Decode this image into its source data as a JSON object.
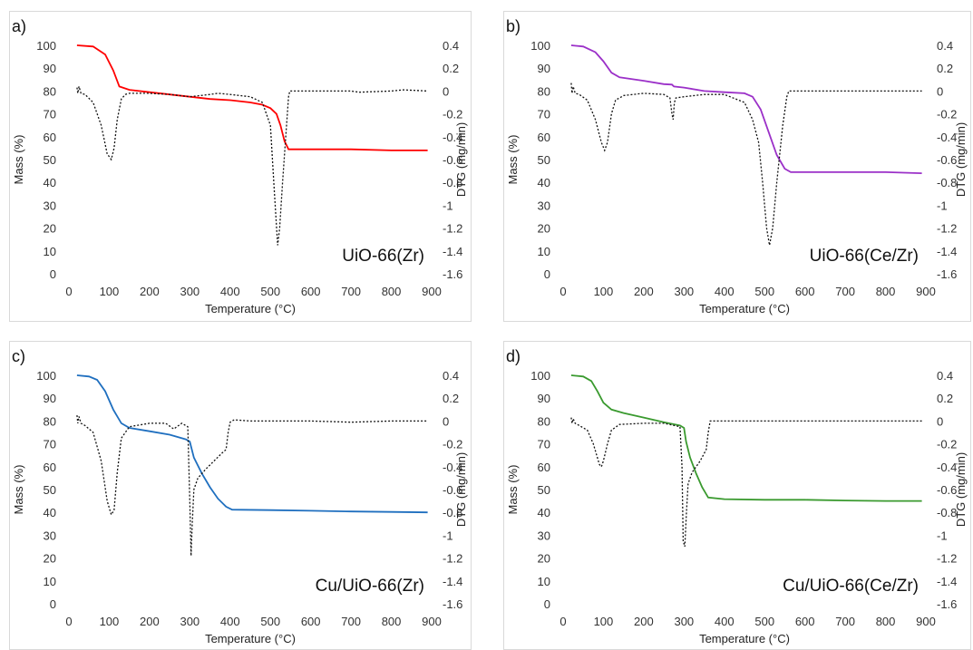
{
  "chart_data": [
    {
      "type": "line",
      "panel_label": "a)",
      "sample": "UiO-66(Zr)",
      "xlabel": "Temperature (°C)",
      "ylabel": "Mass (%)",
      "y2label": "DTG (mg/min)",
      "xlim": [
        0,
        900
      ],
      "ylim": [
        0,
        100
      ],
      "y2lim": [
        -1.6,
        0.4
      ],
      "xticks": [
        0,
        100,
        200,
        300,
        400,
        500,
        600,
        700,
        800,
        900
      ],
      "yticks": [
        0,
        10,
        20,
        30,
        40,
        50,
        60,
        70,
        80,
        90,
        100
      ],
      "y2ticks": [
        "0.4",
        "0.2",
        "0",
        "-0.2",
        "-0.4",
        "-0.6",
        "-0.8",
        "-1",
        "-1.2",
        "-1.4",
        "-1.6"
      ],
      "mass_color": "#ff0000",
      "series": [
        {
          "axis": "left",
          "style": "solid",
          "x": [
            20,
            60,
            90,
            110,
            125,
            150,
            200,
            250,
            300,
            350,
            400,
            450,
            480,
            500,
            515,
            525,
            535,
            545,
            600,
            700,
            800,
            890
          ],
          "y": [
            100,
            99.5,
            96,
            89,
            82,
            80.5,
            79.5,
            78.5,
            77.5,
            76.5,
            76,
            75,
            74,
            72.5,
            70,
            65,
            58,
            54.5,
            54.5,
            54.5,
            54,
            54
          ]
        },
        {
          "axis": "right",
          "style": "dotted",
          "x": [
            20,
            22,
            25,
            30,
            40,
            60,
            80,
            95,
            105,
            112,
            120,
            130,
            140,
            150,
            200,
            250,
            300,
            350,
            370,
            400,
            450,
            480,
            500,
            510,
            518,
            523,
            530,
            540,
            545,
            548,
            560,
            600,
            700,
            720,
            800,
            830,
            890
          ],
          "y": [
            0.03,
            -0.02,
            0.04,
            -0.02,
            -0.03,
            -0.1,
            -0.3,
            -0.55,
            -0.6,
            -0.5,
            -0.25,
            -0.07,
            -0.03,
            -0.02,
            -0.02,
            -0.03,
            -0.05,
            -0.03,
            -0.02,
            -0.03,
            -0.05,
            -0.1,
            -0.3,
            -0.9,
            -1.35,
            -1.2,
            -0.8,
            -0.3,
            -0.05,
            0,
            0,
            0,
            0,
            -0.01,
            0,
            0.01,
            0
          ]
        }
      ]
    },
    {
      "type": "line",
      "panel_label": "b)",
      "sample": "UiO-66(Ce/Zr)",
      "xlabel": "Temperature (°C)",
      "ylabel": "Mass (%)",
      "y2label": "DTG (mg/min)",
      "xlim": [
        0,
        900
      ],
      "ylim": [
        0,
        100
      ],
      "y2lim": [
        -1.6,
        0.4
      ],
      "xticks": [
        0,
        100,
        200,
        300,
        400,
        500,
        600,
        700,
        800,
        900
      ],
      "yticks": [
        0,
        10,
        20,
        30,
        40,
        50,
        60,
        70,
        80,
        90,
        100
      ],
      "y2ticks": [
        "0.4",
        "0.2",
        "0",
        "-0.2",
        "-0.4",
        "-0.6",
        "-0.8",
        "-1",
        "-1.2",
        "-1.4",
        "-1.6"
      ],
      "mass_color": "#9b30c8",
      "series": [
        {
          "axis": "left",
          "style": "solid",
          "x": [
            20,
            50,
            80,
            100,
            120,
            140,
            200,
            250,
            270,
            275,
            300,
            350,
            400,
            450,
            470,
            490,
            510,
            530,
            550,
            565,
            600,
            700,
            800,
            890
          ],
          "y": [
            100,
            99.5,
            97,
            93,
            88,
            86,
            84.5,
            83,
            82.8,
            82,
            81.5,
            80,
            79.5,
            79,
            77.5,
            72,
            62,
            52,
            46,
            44.5,
            44.5,
            44.5,
            44.5,
            44
          ]
        },
        {
          "axis": "right",
          "style": "dotted",
          "x": [
            20,
            22,
            25,
            30,
            40,
            60,
            80,
            95,
            103,
            110,
            120,
            130,
            150,
            200,
            250,
            265,
            270,
            273,
            276,
            280,
            300,
            350,
            400,
            450,
            470,
            485,
            495,
            505,
            512,
            520,
            530,
            545,
            555,
            560,
            600,
            700,
            800,
            890
          ],
          "y": [
            0.07,
            -0.02,
            0.04,
            -0.02,
            -0.03,
            -0.08,
            -0.25,
            -0.45,
            -0.52,
            -0.45,
            -0.2,
            -0.08,
            -0.04,
            -0.02,
            -0.03,
            -0.06,
            -0.2,
            -0.25,
            -0.1,
            -0.06,
            -0.05,
            -0.03,
            -0.03,
            -0.1,
            -0.25,
            -0.45,
            -0.8,
            -1.2,
            -1.35,
            -1.2,
            -0.8,
            -0.3,
            -0.05,
            0,
            0,
            0,
            0,
            0
          ]
        }
      ]
    },
    {
      "type": "line",
      "panel_label": "c)",
      "sample": "Cu/UiO-66(Zr)",
      "xlabel": "Temperature (°C)",
      "ylabel": "Mass (%)",
      "y2label": "DTG (mg/min)",
      "xlim": [
        0,
        900
      ],
      "ylim": [
        0,
        100
      ],
      "y2lim": [
        -1.6,
        0.4
      ],
      "xticks": [
        0,
        100,
        200,
        300,
        400,
        500,
        600,
        700,
        800,
        900
      ],
      "yticks": [
        0,
        10,
        20,
        30,
        40,
        50,
        60,
        70,
        80,
        90,
        100
      ],
      "y2ticks": [
        "0.4",
        "0.2",
        "0",
        "-0.2",
        "-0.4",
        "-0.6",
        "-0.8",
        "-1",
        "-1.2",
        "-1.4",
        "-1.6"
      ],
      "mass_color": "#1f6fbf",
      "series": [
        {
          "axis": "left",
          "style": "solid",
          "x": [
            20,
            50,
            70,
            90,
            110,
            130,
            150,
            200,
            250,
            290,
            300,
            310,
            330,
            350,
            370,
            390,
            405,
            500,
            600,
            700,
            800,
            890
          ],
          "y": [
            100,
            99.5,
            98,
            93,
            85,
            79,
            77,
            75.5,
            74,
            72,
            71,
            64,
            57,
            51,
            46,
            42.5,
            41.2,
            41,
            40.7,
            40.4,
            40.2,
            40
          ]
        },
        {
          "axis": "right",
          "style": "dotted",
          "x": [
            20,
            22,
            25,
            30,
            40,
            60,
            80,
            95,
            105,
            112,
            120,
            130,
            150,
            200,
            240,
            260,
            280,
            295,
            300,
            303,
            306,
            310,
            320,
            340,
            360,
            380,
            390,
            395,
            400,
            405,
            410,
            450,
            500,
            600,
            700,
            800,
            890
          ],
          "y": [
            0.05,
            -0.02,
            0.04,
            -0.02,
            -0.04,
            -0.1,
            -0.35,
            -0.7,
            -0.82,
            -0.78,
            -0.45,
            -0.15,
            -0.05,
            -0.02,
            -0.02,
            -0.07,
            -0.02,
            -0.05,
            -0.7,
            -1.18,
            -0.9,
            -0.6,
            -0.5,
            -0.42,
            -0.35,
            -0.28,
            -0.25,
            -0.1,
            -0.01,
            0,
            0.01,
            0,
            0,
            0,
            -0.01,
            0,
            0
          ]
        }
      ]
    },
    {
      "type": "line",
      "panel_label": "d)",
      "sample": "Cu/UiO-66(Ce/Zr)",
      "xlabel": "Temperature (°C)",
      "ylabel": "Mass (%)",
      "y2label": "DTG (mg/min)",
      "xlim": [
        0,
        900
      ],
      "ylim": [
        0,
        100
      ],
      "y2lim": [
        -1.6,
        0.4
      ],
      "xticks": [
        0,
        100,
        200,
        300,
        400,
        500,
        600,
        700,
        800,
        900
      ],
      "yticks": [
        0,
        10,
        20,
        30,
        40,
        50,
        60,
        70,
        80,
        90,
        100
      ],
      "y2ticks": [
        "0.4",
        "0.2",
        "0",
        "-0.2",
        "-0.4",
        "-0.6",
        "-0.8",
        "-1",
        "-1.2",
        "-1.4",
        "-1.6"
      ],
      "mass_color": "#3a9a2f",
      "series": [
        {
          "axis": "left",
          "style": "solid",
          "x": [
            20,
            50,
            70,
            85,
            100,
            120,
            150,
            200,
            250,
            290,
            300,
            305,
            315,
            330,
            345,
            360,
            400,
            500,
            600,
            700,
            800,
            890
          ],
          "y": [
            100,
            99.5,
            97.5,
            93,
            88,
            85,
            83.5,
            81.5,
            79.5,
            78,
            77,
            71,
            64,
            57,
            51,
            46.5,
            45.8,
            45.5,
            45.5,
            45.2,
            45,
            45
          ]
        },
        {
          "axis": "right",
          "style": "dotted",
          "x": [
            20,
            22,
            25,
            30,
            40,
            60,
            75,
            90,
            95,
            100,
            110,
            120,
            140,
            200,
            250,
            290,
            295,
            298,
            302,
            306,
            310,
            320,
            340,
            355,
            360,
            365,
            400,
            500,
            600,
            700,
            800,
            890
          ],
          "y": [
            0.03,
            -0.02,
            0.02,
            -0.02,
            -0.04,
            -0.08,
            -0.2,
            -0.38,
            -0.4,
            -0.35,
            -0.2,
            -0.08,
            -0.03,
            -0.02,
            -0.02,
            -0.05,
            -0.4,
            -1.05,
            -1.1,
            -0.8,
            -0.55,
            -0.45,
            -0.35,
            -0.25,
            -0.1,
            0,
            0,
            0,
            0,
            0,
            0,
            0
          ]
        }
      ]
    }
  ]
}
